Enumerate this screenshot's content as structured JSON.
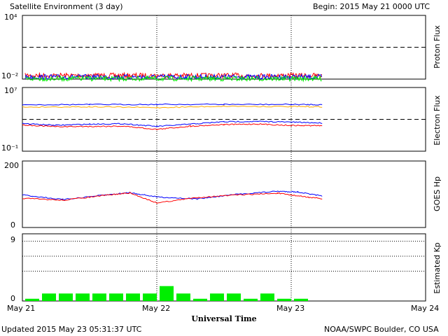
{
  "header": {
    "title": "Satellite Environment (3 day)",
    "begin": "Begin:  2015 May 21 0000 UTC"
  },
  "footer": {
    "updated": "Updated 2015 May 23 05:31:37 UTC",
    "credit": "NOAA/SWPC Boulder, CO USA",
    "xlabel": "Universal Time"
  },
  "x_ticks": [
    "May 21",
    "May 22",
    "May 23",
    "May 24"
  ],
  "chart_data": [
    {
      "type": "line",
      "panel": "proton",
      "ylabel": "Proton Flux",
      "scale": "log",
      "ylim": [
        0.01,
        10000
      ],
      "ytick_labels": [
        "10⁴",
        "10⁻²"
      ],
      "threshold": 10,
      "x_range_days": [
        0,
        3
      ],
      "data_end_day": 2.23,
      "series": [
        {
          "color": "#ff0000",
          "level": 0.022
        },
        {
          "color": "#0000ff",
          "level": 0.016
        },
        {
          "color": "#00ee00",
          "level": 0.011
        }
      ]
    },
    {
      "type": "line",
      "panel": "electron",
      "ylabel": "Electron Flux",
      "scale": "log",
      "ylim": [
        0.1,
        10000000
      ],
      "ytick_labels": [
        "10⁷",
        "10⁻¹"
      ],
      "threshold": 1000,
      "x_range_days": [
        0,
        3
      ],
      "data_end_day": 2.23,
      "series": [
        {
          "color": "#0000ff",
          "x": [
            0,
            0.5,
            1.0,
            1.5,
            2.0,
            2.23
          ],
          "y": [
            70000,
            72000,
            75000,
            76000,
            74000,
            70000
          ]
        },
        {
          "color": "#ffaa00",
          "x": [
            0,
            0.5,
            1.0,
            1.5,
            2.0,
            2.23
          ],
          "y": [
            35000,
            38000,
            30000,
            45000,
            40000,
            38000
          ]
        },
        {
          "color": "#0000ff",
          "x": [
            0,
            0.25,
            0.5,
            0.75,
            1.0,
            1.25,
            1.5,
            1.75,
            2.0,
            2.23
          ],
          "y": [
            300,
            180,
            250,
            280,
            130,
            250,
            500,
            550,
            450,
            350
          ]
        },
        {
          "color": "#ff0000",
          "x": [
            0,
            0.25,
            0.5,
            0.75,
            1.0,
            1.25,
            1.5,
            1.75,
            2.0,
            2.23
          ],
          "y": [
            200,
            120,
            130,
            140,
            55,
            140,
            220,
            260,
            170,
            160
          ]
        }
      ]
    },
    {
      "type": "line",
      "panel": "goes_hp",
      "ylabel": "GOES Hp",
      "scale": "linear",
      "ylim": [
        0,
        200
      ],
      "ytick_labels": [
        "200",
        "0"
      ],
      "x_range_days": [
        0,
        3
      ],
      "data_end_day": 2.23,
      "series": [
        {
          "color": "#0000ff",
          "x": [
            0,
            0.3,
            0.6,
            0.8,
            1.0,
            1.3,
            1.6,
            1.9,
            2.05,
            2.23
          ],
          "y": [
            98,
            84,
            97,
            105,
            92,
            86,
            100,
            109,
            107,
            94
          ]
        },
        {
          "color": "#ff0000",
          "x": [
            0,
            0.3,
            0.6,
            0.8,
            1.0,
            1.3,
            1.6,
            1.9,
            2.05,
            2.23
          ],
          "y": [
            88,
            82,
            96,
            104,
            74,
            90,
            98,
            103,
            95,
            86
          ]
        }
      ]
    },
    {
      "type": "bar",
      "panel": "kp",
      "ylabel": "Estimated Kp",
      "ylim": [
        0,
        9
      ],
      "ytick_labels": [
        "9",
        "0"
      ],
      "hgrid": [
        4,
        6,
        8
      ],
      "color": "#00ee00",
      "bar_hours": 3,
      "values": [
        0.3,
        1,
        1,
        1,
        1,
        1,
        1,
        1,
        2,
        1,
        0.3,
        1,
        1,
        0.3,
        1,
        0.3,
        0.3
      ]
    }
  ]
}
